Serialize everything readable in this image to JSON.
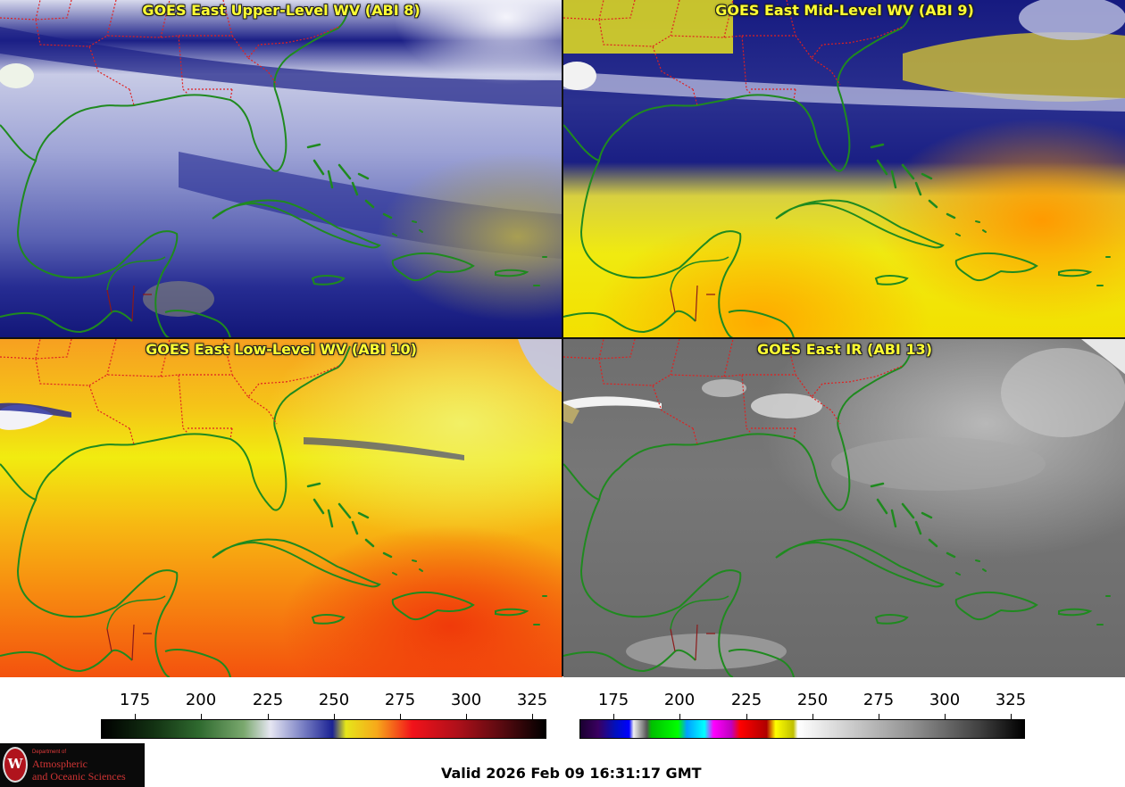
{
  "panels": [
    {
      "title": "GOES East Upper-Level WV (ABI 8)",
      "scheme": "wv_blue"
    },
    {
      "title": "GOES East Mid-Level WV (ABI 9)",
      "scheme": "wv_mid"
    },
    {
      "title": "GOES East Low-Level WV (ABI 10)",
      "scheme": "wv_low"
    },
    {
      "title": "GOES East IR (ABI 13)",
      "scheme": "ir_gray"
    }
  ],
  "colorbars": {
    "wv": {
      "ticks": [
        "175",
        "200",
        "225",
        "250",
        "275",
        "300",
        "325"
      ],
      "range": [
        162,
        330
      ]
    },
    "ir": {
      "ticks": [
        "175",
        "200",
        "225",
        "250",
        "275",
        "300",
        "325"
      ],
      "range": [
        162,
        330
      ]
    }
  },
  "footer": {
    "valid_text": "Valid 2026 Feb 09 16:31:17 GMT",
    "logo": {
      "line1": "Department of",
      "line2": "Atmospheric",
      "line3": "and Oceanic Sciences",
      "seal": "W"
    }
  },
  "colors": {
    "coastline": "#1f8a1f",
    "state_border": "#e02020",
    "title_text": "#ffff33"
  }
}
